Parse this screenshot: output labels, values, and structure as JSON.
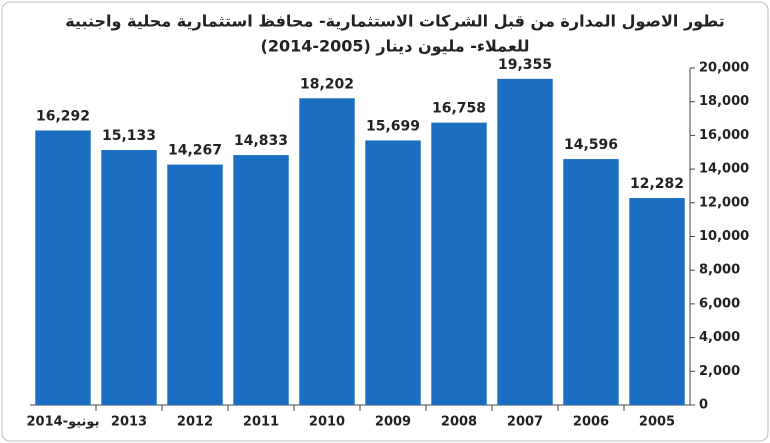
{
  "chart_data": {
    "type": "bar",
    "title": "تطور الاصول المدارة من قبل الشركات الاستثمارية- محافظ استثمارية محلية واجنبية",
    "subtitle": "للعملاء- مليون دينار (2005-2014)",
    "categories": [
      "يونيو-2014",
      "2013",
      "2012",
      "2011",
      "2010",
      "2009",
      "2008",
      "2007",
      "2006",
      "2005"
    ],
    "values": [
      16292,
      15133,
      14267,
      14833,
      18202,
      15699,
      16758,
      19355,
      14596,
      12282
    ],
    "value_labels": [
      "16,292",
      "15,133",
      "14,267",
      "14,833",
      "18,202",
      "15,699",
      "16,758",
      "19,355",
      "14,596",
      "12,282"
    ],
    "color": "#1b6ec2",
    "ylim": [
      0,
      20000
    ],
    "yticks": [
      0,
      {
        "value": 2000,
        "label": "2,000"
      },
      {
        "value": 4000,
        "label": "4,000"
      },
      {
        "value": 6000,
        "label": "6,000"
      },
      {
        "value": 8000,
        "label": "8,000"
      },
      {
        "value": 10000,
        "label": "10,000"
      },
      {
        "value": 12000,
        "label": "12,000"
      },
      {
        "value": 14000,
        "label": "14,000"
      },
      {
        "value": 16000,
        "label": "16,000"
      },
      {
        "value": 18000,
        "label": "18,000"
      },
      {
        "value": 20000,
        "label": "20,000"
      }
    ],
    "y_axis_side": "right",
    "grid": false
  }
}
